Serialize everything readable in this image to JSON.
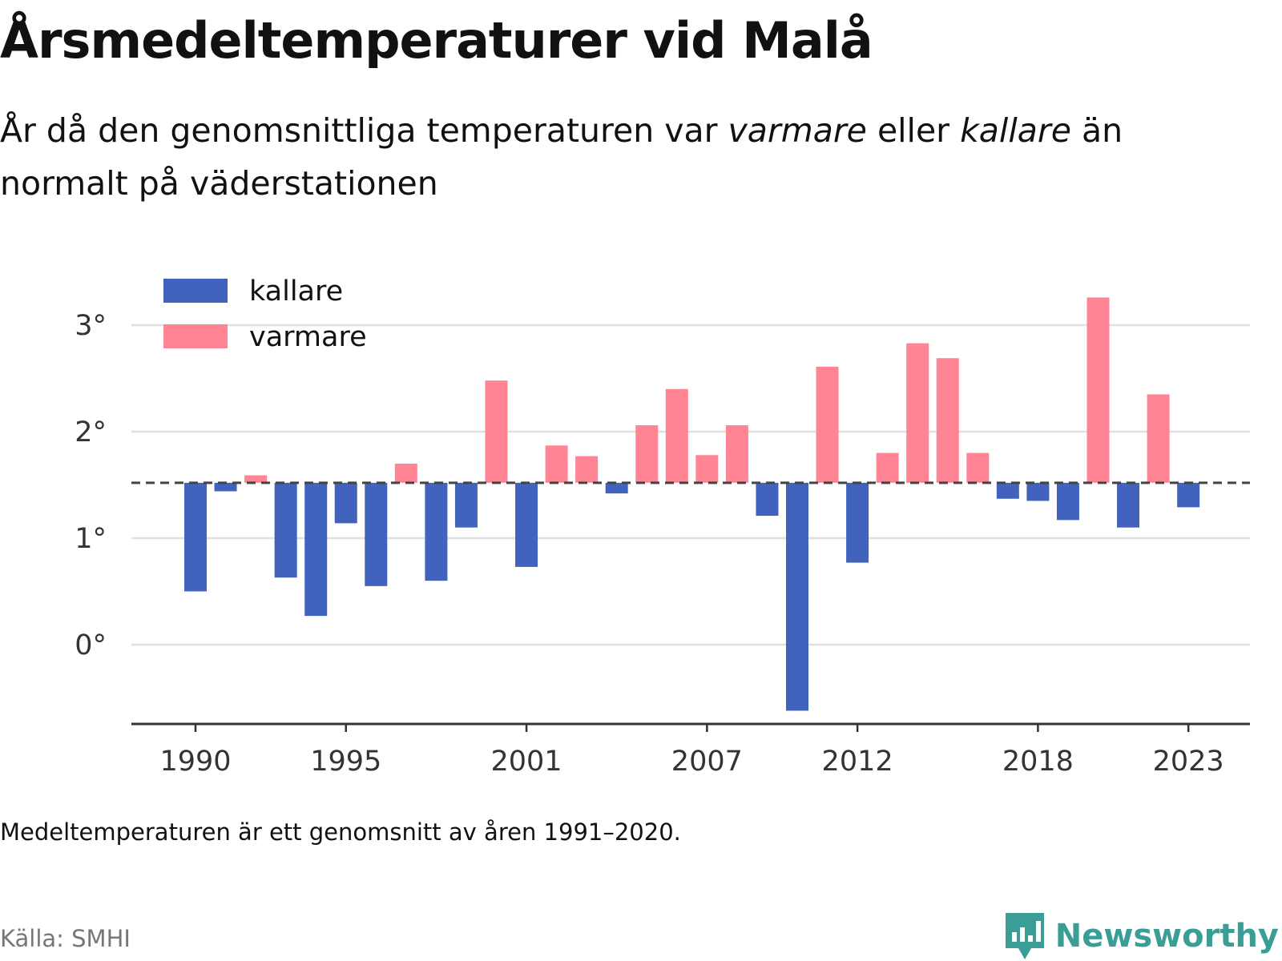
{
  "title": "Årsmedeltemperaturer vid Malå",
  "subtitle": {
    "part1": "År då den genomsnittliga temperaturen var ",
    "warm_word": "varmare",
    "part2": " eller ",
    "cold_word": "kallare",
    "part3": " än normalt på väderstationen"
  },
  "note": "Medeltemperaturen är ett genomsnitt av åren 1991–2020.",
  "source": "Källa: SMHI",
  "brand": "Newsworthy",
  "colors": {
    "cold": "#4263bd",
    "warm": "#ff8494",
    "grid": "#e0e0e0",
    "axis": "#333333",
    "reference": "#444444",
    "brand": "#3a9e97"
  },
  "chart_data": {
    "type": "bar",
    "title": "Årsmedeltemperaturer vid Malå",
    "xlabel": "",
    "ylabel": "",
    "baseline": 1.52,
    "baseline_style": "dashed",
    "ylim": [
      -0.75,
      3.5
    ],
    "yticks": [
      0,
      1,
      2,
      3
    ],
    "ytick_labels": [
      "0°",
      "1°",
      "2°",
      "3°"
    ],
    "xticks": [
      1990,
      1995,
      2001,
      2007,
      2012,
      2018,
      2023
    ],
    "xtick_labels": [
      "1990",
      "1995",
      "2001",
      "2007",
      "2012",
      "2018",
      "2023"
    ],
    "grid": true,
    "legend": {
      "position": "top-left",
      "items": [
        {
          "label": "kallare",
          "color": "#4263bd"
        },
        {
          "label": "varmare",
          "color": "#ff8494"
        }
      ]
    },
    "categories": [
      1990,
      1991,
      1992,
      1993,
      1994,
      1995,
      1996,
      1997,
      1998,
      1999,
      2000,
      2001,
      2002,
      2003,
      2004,
      2005,
      2006,
      2007,
      2008,
      2009,
      2010,
      2011,
      2012,
      2013,
      2014,
      2015,
      2016,
      2017,
      2018,
      2019,
      2020,
      2021,
      2022,
      2023
    ],
    "values": [
      0.5,
      1.44,
      1.59,
      0.63,
      0.27,
      1.14,
      0.55,
      1.7,
      0.6,
      1.1,
      2.48,
      0.73,
      1.87,
      1.77,
      1.42,
      2.06,
      2.4,
      1.78,
      2.06,
      1.21,
      -0.62,
      2.61,
      0.77,
      1.8,
      2.83,
      2.69,
      1.8,
      1.37,
      1.35,
      1.17,
      3.26,
      1.1,
      2.35,
      1.29
    ]
  }
}
